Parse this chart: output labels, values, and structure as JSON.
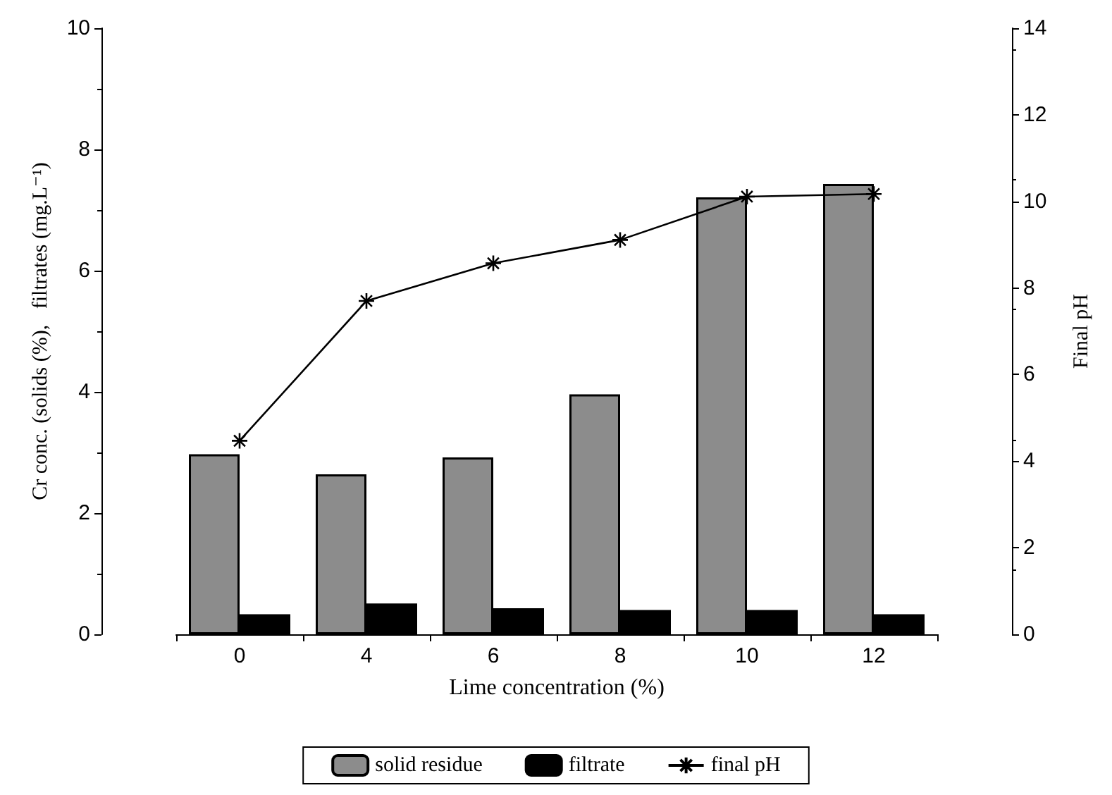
{
  "chart_data": {
    "type": "bar",
    "xlabel": "Lime concentration (%)",
    "ylabel": "Cr conc. (solids (%),   filtrates (mg.L⁻¹)",
    "y2label": "Final pH",
    "categories": [
      "0",
      "4",
      "6",
      "8",
      "10",
      "12"
    ],
    "series": [
      {
        "name": "solid residue",
        "color": "#8c8c8c",
        "values": [
          2.97,
          2.64,
          2.92,
          3.96,
          7.21,
          7.43
        ]
      },
      {
        "name": "filtrate",
        "color": "#000000",
        "values": [
          0.33,
          0.51,
          0.43,
          0.4,
          0.4,
          0.33
        ]
      },
      {
        "name": "final pH",
        "type": "line",
        "axis": "y2",
        "color": "#000000",
        "marker": "cross",
        "values": [
          4.47,
          7.7,
          8.57,
          9.11,
          10.11,
          10.17
        ]
      }
    ],
    "ylim": [
      0,
      10
    ],
    "yticks": [
      0,
      2,
      4,
      6,
      8,
      10
    ],
    "y2lim": [
      0,
      14
    ],
    "y2ticks": [
      0,
      2,
      4,
      6,
      8,
      10,
      12,
      14
    ],
    "legend": "bottom",
    "grid": false
  }
}
